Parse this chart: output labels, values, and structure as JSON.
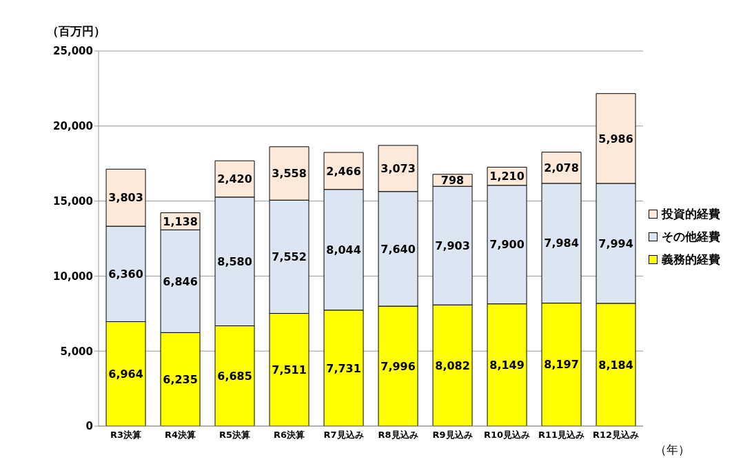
{
  "chart_data": {
    "type": "bar",
    "stacked": true,
    "ylabel": "（百万円）",
    "xlabel": "（年）",
    "categories": [
      "R3決算",
      "R4決算",
      "R5決算",
      "R6決算",
      "R7見込み",
      "R8見込み",
      "R9見込み",
      "R10見込み",
      "R11見込み",
      "R12見込み"
    ],
    "series": [
      {
        "name": "義務的経費",
        "color": "#ffff00",
        "values": [
          6964,
          6235,
          6685,
          7511,
          7731,
          7996,
          8082,
          8149,
          8197,
          8184
        ],
        "value_labels": [
          "6,964",
          "6,235",
          "6,685",
          "7,511",
          "7,731",
          "7,996",
          "8,082",
          "8,149",
          "8,197",
          "8,184"
        ]
      },
      {
        "name": "その他経費",
        "color": "#dce6f2",
        "values": [
          6360,
          6846,
          8580,
          7552,
          8044,
          7640,
          7903,
          7900,
          7984,
          7994
        ],
        "value_labels": [
          "6,360",
          "6,846",
          "8,580",
          "7,552",
          "8,044",
          "7,640",
          "7,903",
          "7,900",
          "7,984",
          "7,994"
        ]
      },
      {
        "name": "投資的経費",
        "color": "#fde9d9",
        "values": [
          3803,
          1138,
          2420,
          3558,
          2466,
          3073,
          798,
          1210,
          2078,
          5986
        ],
        "value_labels": [
          "3,803",
          "1,138",
          "2,420",
          "3,558",
          "2,466",
          "3,073",
          "798",
          "1,210",
          "2,078",
          "5,986"
        ]
      }
    ],
    "ylim": [
      0,
      25000
    ],
    "yticks": [
      {
        "value": 0,
        "label": "0"
      },
      {
        "value": 5000,
        "label": "5,000"
      },
      {
        "value": 10000,
        "label": "10,000"
      },
      {
        "value": 15000,
        "label": "15,000"
      },
      {
        "value": 20000,
        "label": "20,000"
      },
      {
        "value": 25000,
        "label": "25,000"
      }
    ],
    "grid": "y",
    "legend": "right"
  }
}
